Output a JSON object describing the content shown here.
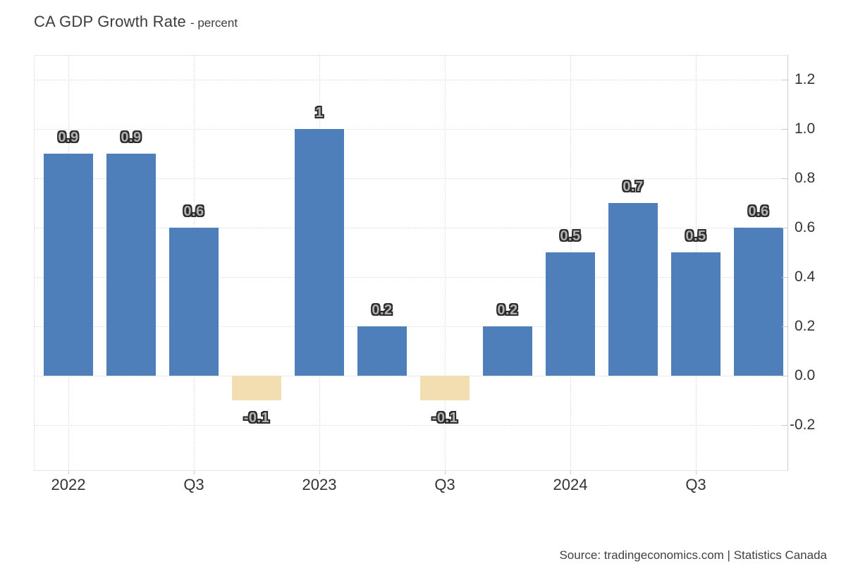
{
  "header": {
    "title": "CA GDP Growth Rate",
    "subtitle": "- percent"
  },
  "footer": {
    "source": "Source: tradingeconomics.com | Statistics Canada"
  },
  "chart_data": {
    "type": "bar",
    "title": "CA GDP Growth Rate",
    "ylabel": "percent",
    "xlabel": "",
    "categories": [
      "2022 Q1",
      "2022 Q2",
      "2022 Q3",
      "2022 Q4",
      "2023 Q1",
      "2023 Q2",
      "2023 Q3",
      "2023 Q4",
      "2024 Q1",
      "2024 Q2",
      "2024 Q3",
      "2024 Q4"
    ],
    "values": [
      0.9,
      0.9,
      0.6,
      -0.1,
      1,
      0.2,
      -0.1,
      0.2,
      0.5,
      0.7,
      0.5,
      0.6
    ],
    "bar_labels": [
      "0.9",
      "0.9",
      "0.6",
      "-0.1",
      "1",
      "0.2",
      "-0.1",
      "0.2",
      "0.5",
      "0.7",
      "0.5",
      "0.6"
    ],
    "x_tick_labels": [
      "2022",
      "Q3",
      "2023",
      "Q3",
      "2024",
      "Q3"
    ],
    "x_tick_bar_indexes": [
      0,
      2,
      4,
      6,
      8,
      10
    ],
    "y_ticks": [
      1.2,
      1.0,
      0.8,
      0.6,
      0.4,
      0.2,
      0.0,
      -0.2
    ],
    "y_tick_labels": [
      "1.2",
      "1.0",
      "0.8",
      "0.6",
      "0.4",
      "0.2",
      "0.0",
      "-0.2"
    ],
    "ylim": [
      -0.39,
      1.3
    ],
    "grid": "dotted, horizontal at every y tick, vertical at labeled bars",
    "legend": "none",
    "axis_side": "right",
    "colors": {
      "positive_bar": "#4e7fba",
      "negative_bar": "#f3deb2",
      "grid_line": "#dcdcdc",
      "axis_line": "#cfcfcf",
      "tick_text": "#333333",
      "bar_label_fill": "#b2b2b2",
      "bar_label_outline": "#2c2c2c"
    }
  }
}
